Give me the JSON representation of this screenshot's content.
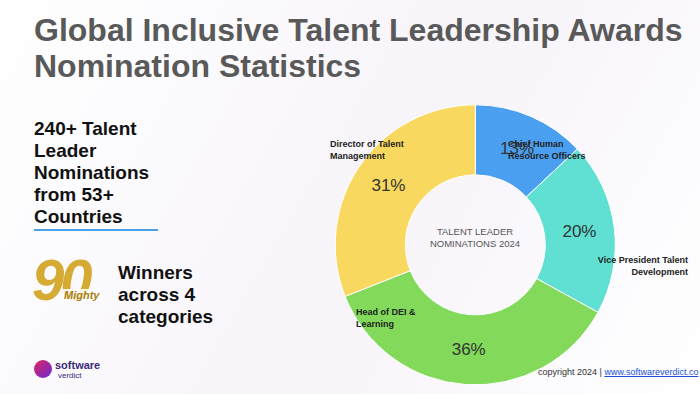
{
  "chart_data": {
    "type": "donut",
    "title": "Global Inclusive Talent Leadership Awards Nomination Statistics",
    "annotations": [
      "TALENT LEADER NOMINATIONS 2024"
    ],
    "categories": [
      "Chief Human Resource Officers",
      "Vice President Talent Development",
      "Head of DEI & Learning",
      "Director of Talent Management"
    ],
    "values": [
      13,
      20,
      36,
      31
    ],
    "value_labels": [
      "13%",
      "20%",
      "36%",
      "31%"
    ],
    "colors": [
      "#4a9ff0",
      "#5fe0d2",
      "#82d95a",
      "#f8d85e"
    ],
    "data_labels": true
  },
  "page": {
    "headline": "240+ Talent Leader Nominations from 53+ Countries",
    "badge": {
      "number": "90",
      "word": "Mighty"
    },
    "winners": "Winners across 4 categories",
    "brand": [
      "software",
      "verdict"
    ],
    "copyright": "copyright 2024",
    "separator": "|",
    "link": "www.softwareverdict.co"
  }
}
